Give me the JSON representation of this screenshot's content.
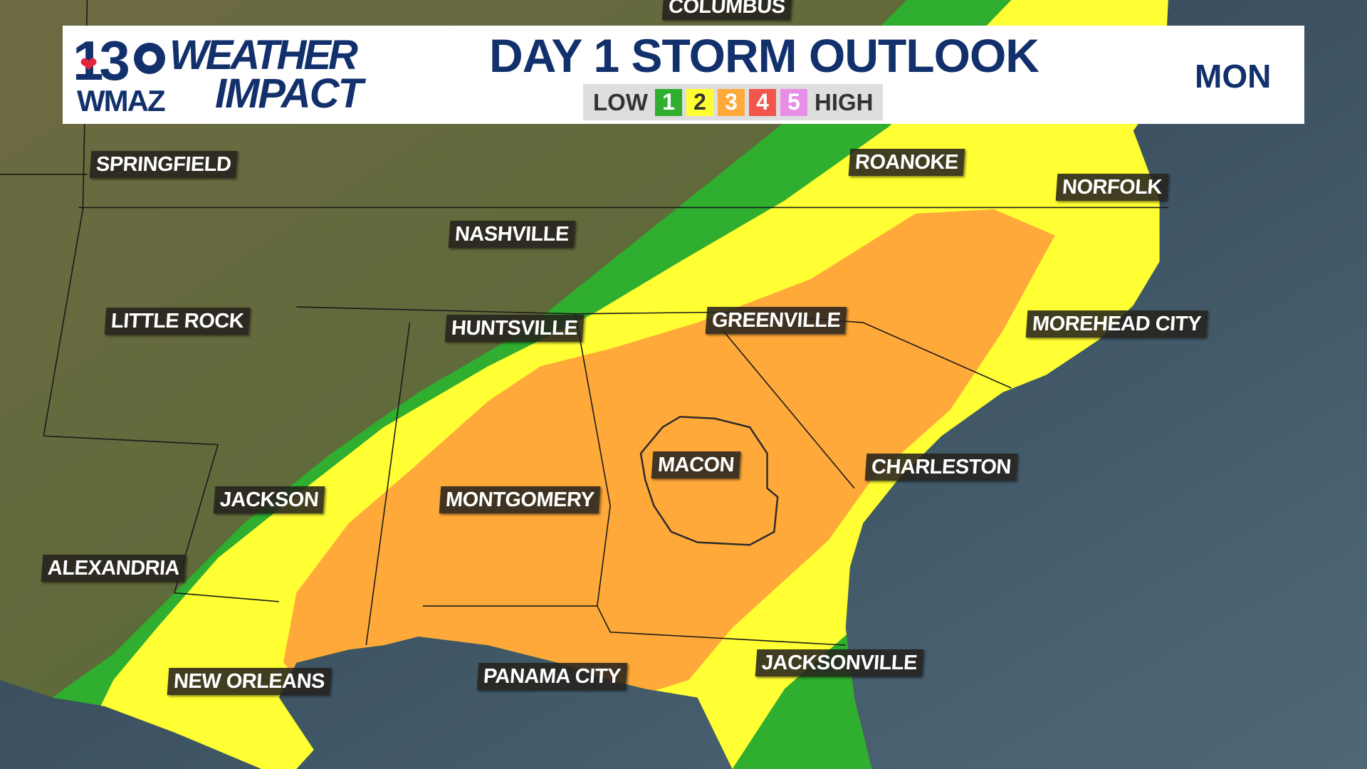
{
  "header": {
    "logo": {
      "number": "13",
      "station": "WMAZ",
      "brand_top": "WEATHER",
      "brand_bottom": "IMPACT"
    },
    "title": "DAY 1 STORM OUTLOOK",
    "day": "MON",
    "legend": {
      "low": "LOW",
      "high": "HIGH",
      "levels": [
        {
          "label": "1",
          "color": "#2fae2f",
          "text_color": "#ffffff"
        },
        {
          "label": "2",
          "color": "#ffff33",
          "text_color": "#333333"
        },
        {
          "label": "3",
          "color": "#ffa93a",
          "text_color": "#ffffff"
        },
        {
          "label": "4",
          "color": "#f2554a",
          "text_color": "#ffffff"
        },
        {
          "label": "5",
          "color": "#e78ee6",
          "text_color": "#ffffff"
        }
      ]
    }
  },
  "cities": [
    "COLUMBUS",
    "SPRINGFIELD",
    "ROANOKE",
    "NORFOLK",
    "NASHVILLE",
    "LITTLE ROCK",
    "HUNTSVILLE",
    "GREENVILLE",
    "MOREHEAD CITY",
    "MACON",
    "CHARLESTON",
    "MONTGOMERY",
    "JACKSON",
    "ALEXANDRIA",
    "NEW ORLEANS",
    "PANAMA CITY",
    "JACKSONVILLE"
  ]
}
